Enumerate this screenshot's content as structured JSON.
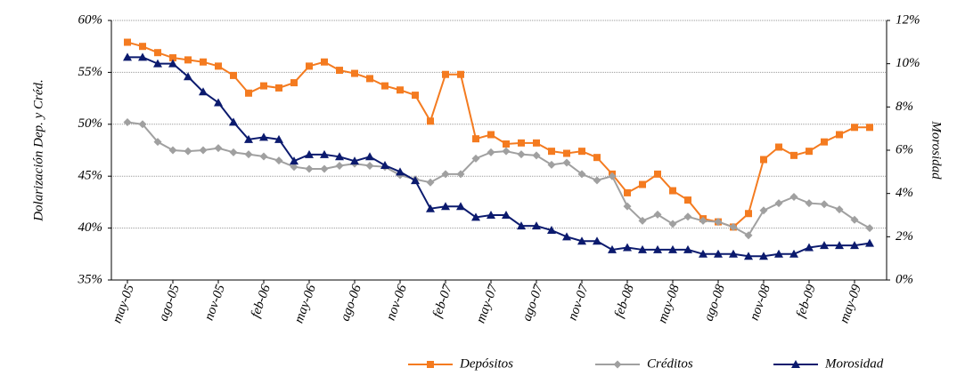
{
  "chart_data": {
    "type": "line",
    "categories": [
      "may-05",
      null,
      null,
      "ago-05",
      null,
      null,
      "nov-05",
      null,
      null,
      "feb-06",
      null,
      null,
      "may-06",
      null,
      null,
      "ago-06",
      null,
      null,
      "nov-06",
      null,
      null,
      "feb-07",
      null,
      null,
      "may-07",
      null,
      null,
      "ago-07",
      null,
      null,
      "nov-07",
      null,
      null,
      "feb-08",
      null,
      null,
      "may-08",
      null,
      null,
      "ago-08",
      null,
      null,
      "nov-08",
      null,
      null,
      "feb-09",
      null,
      null,
      "may-09",
      null
    ],
    "ylabel": "Dolarización Dep. y Créd.",
    "y2label": "Morosidad",
    "ylim": [
      35,
      60
    ],
    "yticks": [
      {
        "value": 35,
        "label": "35%"
      },
      {
        "value": 40,
        "label": "40%"
      },
      {
        "value": 45,
        "label": "45%"
      },
      {
        "value": 50,
        "label": "50%"
      },
      {
        "value": 55,
        "label": "55%"
      },
      {
        "value": 60,
        "label": "60%"
      }
    ],
    "y2lim": [
      0,
      12
    ],
    "y2ticks": [
      {
        "value": 0,
        "label": "0%"
      },
      {
        "value": 2,
        "label": "2%"
      },
      {
        "value": 4,
        "label": "4%"
      },
      {
        "value": 6,
        "label": "6%"
      },
      {
        "value": 8,
        "label": "8%"
      },
      {
        "value": 10,
        "label": "10%"
      },
      {
        "value": 12,
        "label": "12%"
      }
    ],
    "grid": true,
    "legend": "bottom",
    "series": [
      {
        "name": "Depósitos",
        "color": "#f47b20",
        "marker": "square",
        "values": [
          57.9,
          57.5,
          56.9,
          56.4,
          56.2,
          56.0,
          55.6,
          54.7,
          53.0,
          53.7,
          53.5,
          54.0,
          55.6,
          56.0,
          55.2,
          54.9,
          54.4,
          53.7,
          53.3,
          52.8,
          50.3,
          54.8,
          54.8,
          48.6,
          49.0,
          48.1,
          48.2,
          48.2,
          47.4,
          47.2,
          47.4,
          46.8,
          45.2,
          43.4,
          44.2,
          45.2,
          43.6,
          42.7,
          40.9,
          40.6,
          40.1,
          41.4,
          46.6,
          47.8,
          47.0,
          47.4,
          48.3,
          49.0,
          49.7,
          49.7
        ]
      },
      {
        "name": "Créditos",
        "color": "#a0a0a0",
        "marker": "diamond",
        "values": [
          50.2,
          50.0,
          48.3,
          47.5,
          47.4,
          47.5,
          47.7,
          47.3,
          47.1,
          46.9,
          46.5,
          45.9,
          45.7,
          45.7,
          46.0,
          46.2,
          46.0,
          45.9,
          45.1,
          44.7,
          44.4,
          45.2,
          45.2,
          46.7,
          47.3,
          47.4,
          47.1,
          47.0,
          46.1,
          46.3,
          45.2,
          44.6,
          45.0,
          42.1,
          40.7,
          41.3,
          40.4,
          41.1,
          40.7,
          40.6,
          40.1,
          39.3,
          41.7,
          42.4,
          43.0,
          42.4,
          42.3,
          41.8,
          40.8,
          40.0
        ]
      },
      {
        "name": "Morosidad",
        "color": "#0b1a6e",
        "marker": "triangle",
        "axis": "y2",
        "values": [
          10.3,
          10.3,
          10.0,
          10.0,
          9.4,
          8.7,
          8.2,
          7.3,
          6.5,
          6.6,
          6.5,
          5.5,
          5.8,
          5.8,
          5.7,
          5.5,
          5.7,
          5.3,
          5.0,
          4.6,
          3.3,
          3.4,
          3.4,
          2.9,
          3.0,
          3.0,
          2.5,
          2.5,
          2.3,
          2.0,
          1.8,
          1.8,
          1.4,
          1.5,
          1.4,
          1.4,
          1.4,
          1.4,
          1.2,
          1.2,
          1.2,
          1.1,
          1.1,
          1.2,
          1.2,
          1.5,
          1.6,
          1.6,
          1.6,
          1.7
        ]
      }
    ]
  }
}
